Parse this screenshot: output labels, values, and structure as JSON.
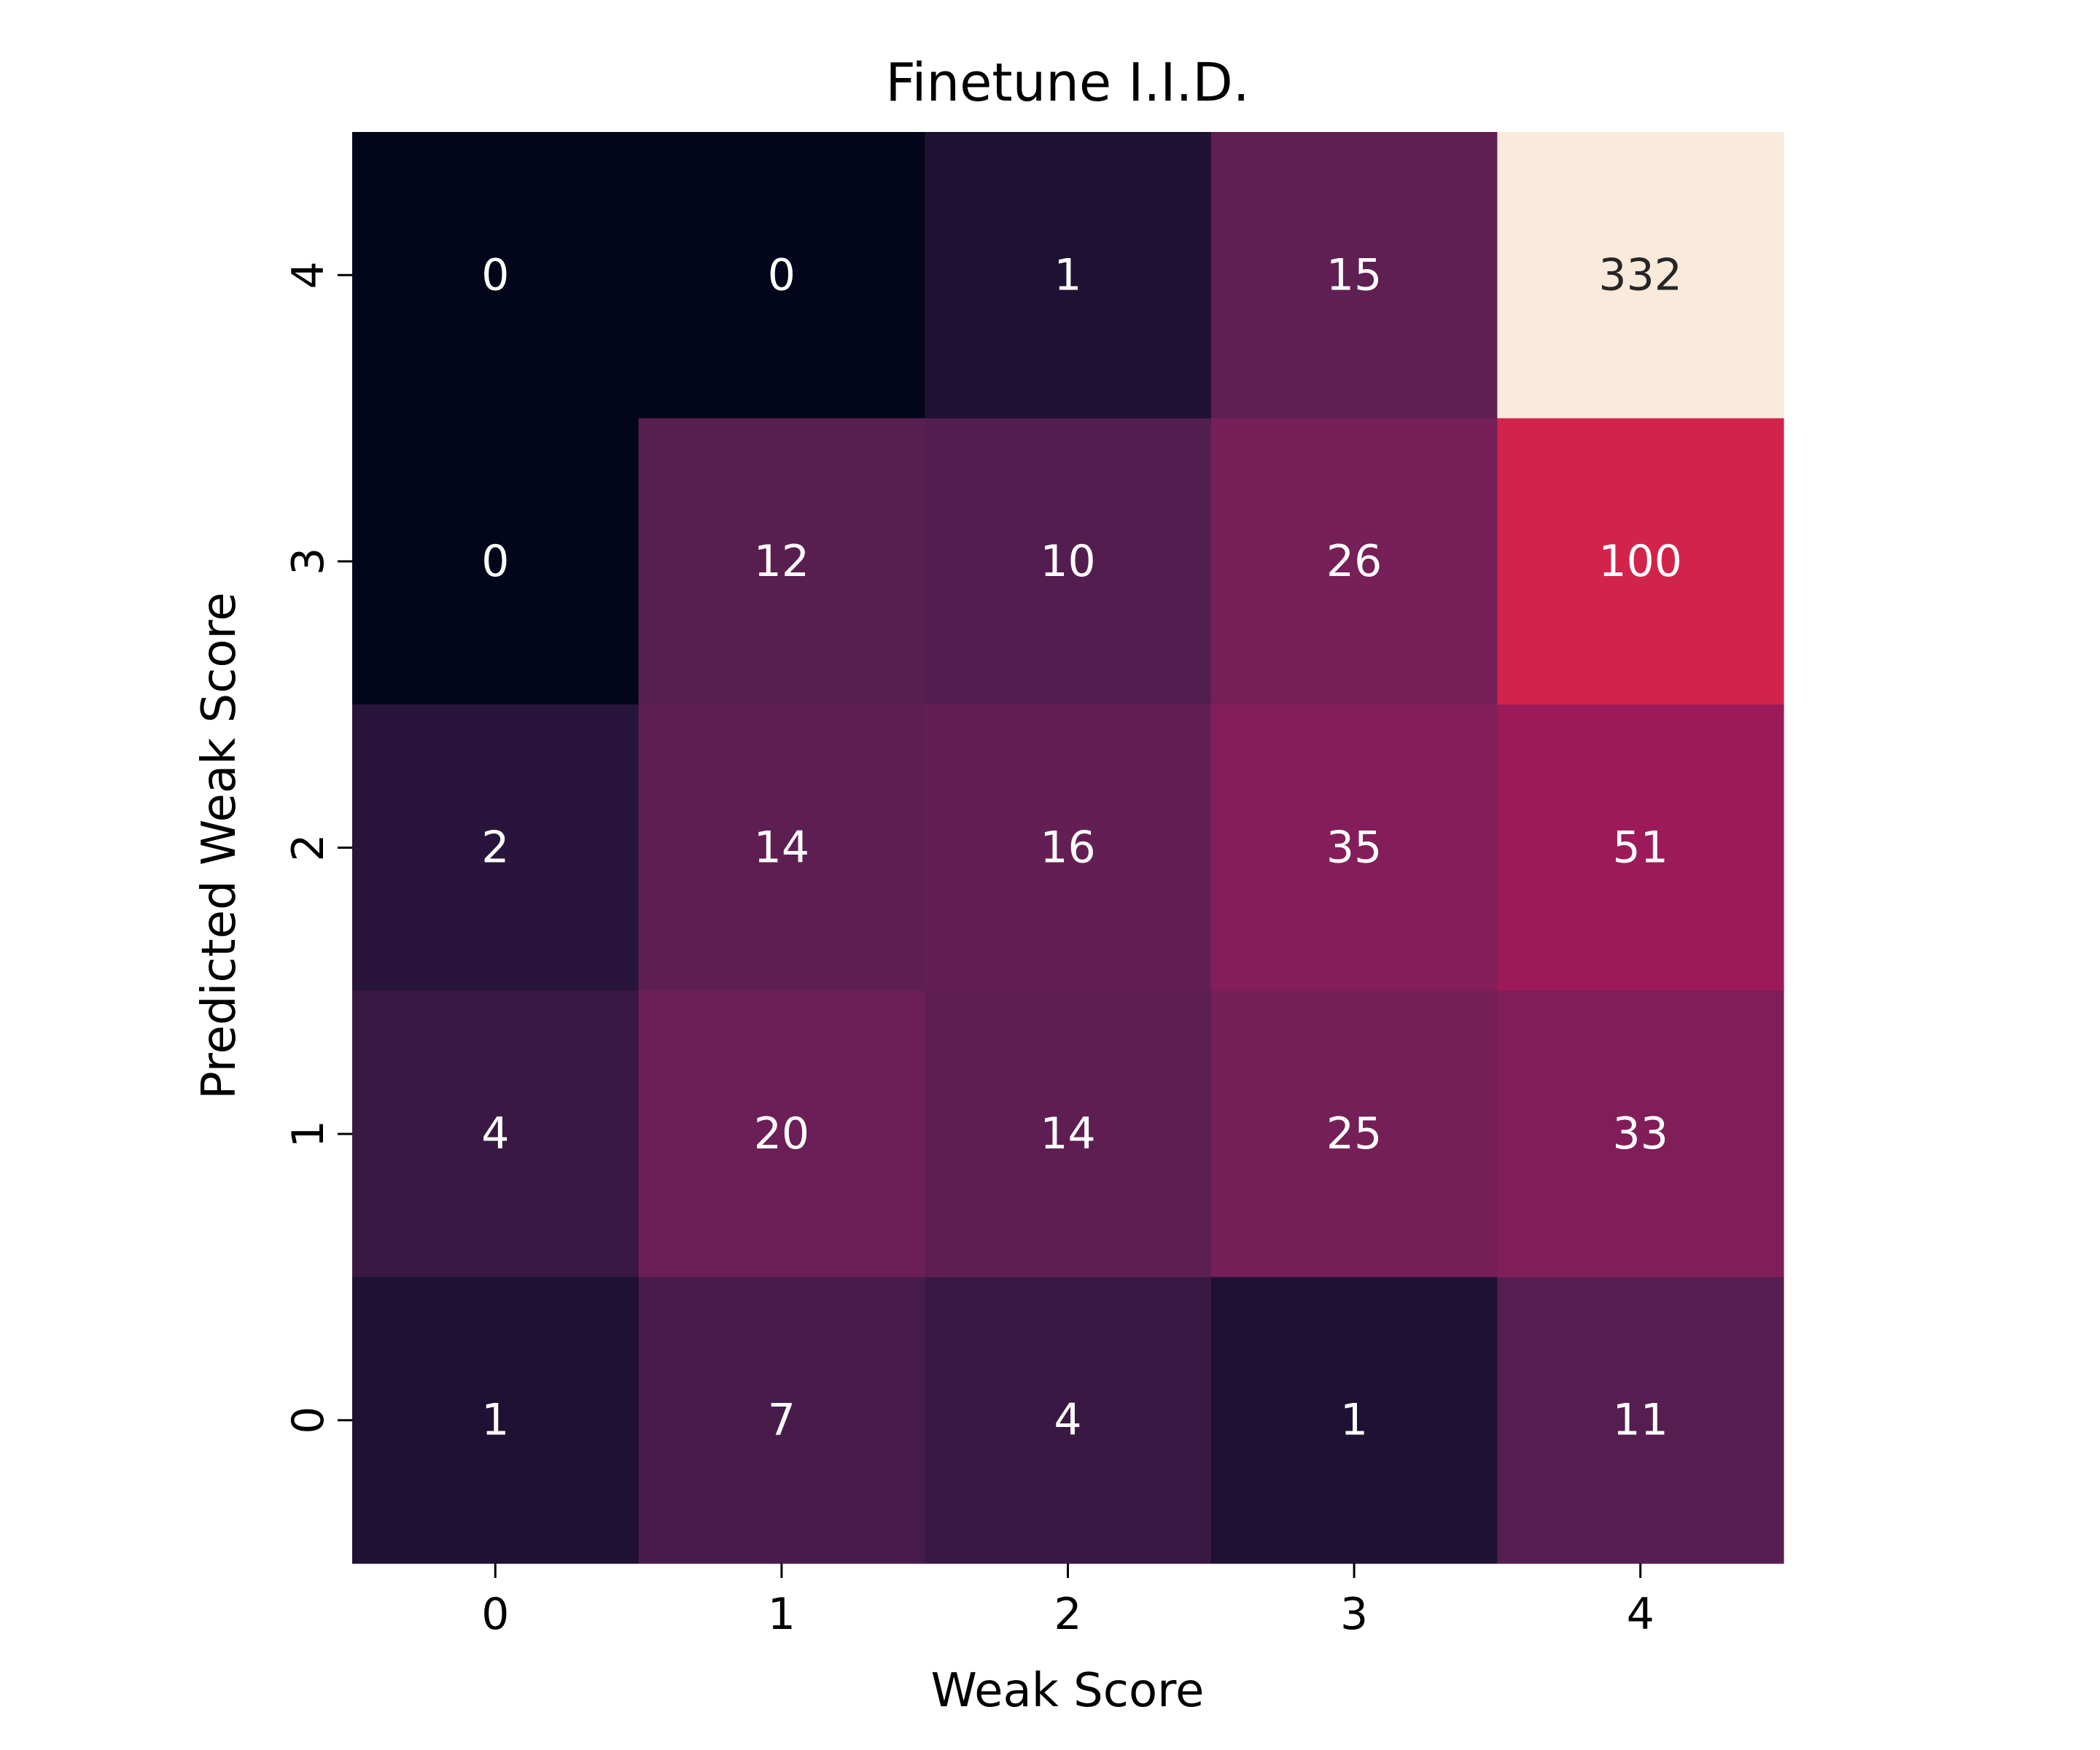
{
  "chart_data": {
    "type": "heatmap",
    "title": "Finetune I.I.D.",
    "xlabel": "Weak Score",
    "ylabel": "Predicted Weak Score",
    "x_categories": [
      "0",
      "1",
      "2",
      "3",
      "4"
    ],
    "y_categories": [
      "4",
      "3",
      "2",
      "1",
      "0"
    ],
    "values": [
      [
        0,
        0,
        1,
        15,
        332
      ],
      [
        0,
        12,
        10,
        26,
        100
      ],
      [
        2,
        14,
        16,
        35,
        51
      ],
      [
        4,
        20,
        14,
        25,
        33
      ],
      [
        1,
        7,
        4,
        1,
        11
      ]
    ],
    "colormap": "rocket",
    "colorbar": false,
    "annotations": true
  }
}
